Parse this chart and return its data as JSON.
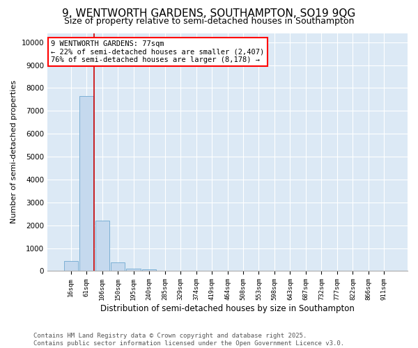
{
  "title": "9, WENTWORTH GARDENS, SOUTHAMPTON, SO19 9QG",
  "subtitle": "Size of property relative to semi-detached houses in Southampton",
  "xlabel": "Distribution of semi-detached houses by size in Southampton",
  "ylabel": "Number of semi-detached properties",
  "categories": [
    "16sqm",
    "61sqm",
    "106sqm",
    "150sqm",
    "195sqm",
    "240sqm",
    "285sqm",
    "329sqm",
    "374sqm",
    "419sqm",
    "464sqm",
    "508sqm",
    "553sqm",
    "598sqm",
    "643sqm",
    "687sqm",
    "732sqm",
    "777sqm",
    "822sqm",
    "866sqm",
    "911sqm"
  ],
  "values": [
    430,
    7650,
    2200,
    370,
    120,
    60,
    0,
    0,
    0,
    0,
    0,
    0,
    0,
    0,
    0,
    0,
    0,
    0,
    0,
    0,
    0
  ],
  "bar_color": "#c5d9ee",
  "bar_edge_color": "#6fa8d0",
  "vline_x_index": 1.5,
  "vline_color": "#cc0000",
  "annotation_line1": "9 WENTWORTH GARDENS: 77sqm",
  "annotation_line2": "← 22% of semi-detached houses are smaller (2,407)",
  "annotation_line3": "76% of semi-detached houses are larger (8,178) →",
  "ylim": [
    0,
    10400
  ],
  "yticks": [
    0,
    1000,
    2000,
    3000,
    4000,
    5000,
    6000,
    7000,
    8000,
    9000,
    10000
  ],
  "bg_color": "#dce9f5",
  "footer": "Contains HM Land Registry data © Crown copyright and database right 2025.\nContains public sector information licensed under the Open Government Licence v3.0.",
  "title_fontsize": 11,
  "subtitle_fontsize": 9,
  "footer_fontsize": 6.5,
  "annotation_fontsize": 7.5,
  "ylabel_fontsize": 8,
  "xlabel_fontsize": 8.5
}
